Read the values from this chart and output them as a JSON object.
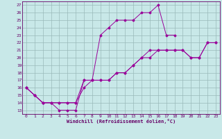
{
  "xlabel": "Windchill (Refroidissement éolien,°C)",
  "bg_color": "#c8e8e8",
  "line_color": "#990099",
  "xlim": [
    -0.5,
    23.5
  ],
  "ylim": [
    12.5,
    27.5
  ],
  "xticks": [
    0,
    1,
    2,
    3,
    4,
    5,
    6,
    7,
    8,
    9,
    10,
    11,
    12,
    13,
    14,
    15,
    16,
    17,
    18,
    19,
    20,
    21,
    22,
    23
  ],
  "yticks": [
    13,
    14,
    15,
    16,
    17,
    18,
    19,
    20,
    21,
    22,
    23,
    24,
    25,
    26,
    27
  ],
  "lines": [
    {
      "x": [
        0,
        1,
        2,
        3,
        4,
        5,
        6,
        7,
        8,
        9,
        10,
        11,
        12,
        13,
        14,
        15,
        16,
        17,
        18
      ],
      "y": [
        16,
        15,
        14,
        14,
        13,
        13,
        13,
        17,
        17,
        23,
        24,
        25,
        25,
        25,
        26,
        26,
        27,
        23,
        23
      ]
    },
    {
      "x": [
        0,
        1,
        2,
        3,
        4,
        5,
        6,
        7,
        8,
        9,
        10,
        11,
        12,
        13,
        14,
        15,
        16,
        17,
        18,
        19,
        20,
        21,
        22,
        23
      ],
      "y": [
        16,
        15,
        14,
        14,
        14,
        14,
        14,
        16,
        17,
        17,
        17,
        18,
        18,
        19,
        20,
        21,
        21,
        21,
        21,
        21,
        20,
        20,
        22,
        22
      ]
    },
    {
      "x": [
        0,
        1,
        2,
        3,
        4,
        5,
        6,
        7,
        8,
        9,
        10,
        11,
        12,
        13,
        14,
        15,
        16,
        17,
        18,
        19,
        20,
        21,
        22,
        23
      ],
      "y": [
        16,
        15,
        14,
        14,
        14,
        14,
        14,
        17,
        17,
        17,
        17,
        18,
        18,
        19,
        20,
        20,
        21,
        21,
        21,
        21,
        20,
        20,
        22,
        22
      ]
    }
  ]
}
